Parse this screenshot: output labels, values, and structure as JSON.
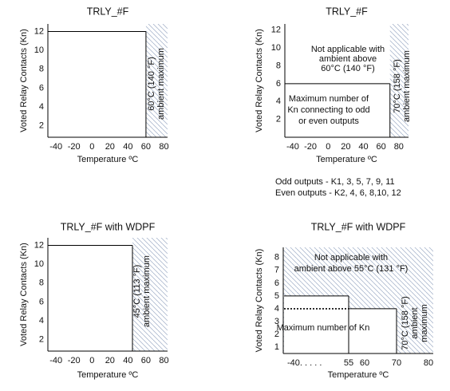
{
  "chart_data": [
    {
      "type": "step",
      "title": "TRLY_#F",
      "xlabel": "Temperature ºC",
      "ylabel": "Voted Relay Contacts (Kn)",
      "xlim": [
        -49,
        84
      ],
      "ylim": [
        0.8,
        12.8
      ],
      "xticks": [
        -40,
        -20,
        0,
        20,
        40,
        60,
        80
      ],
      "yticks": [
        2,
        4,
        6,
        8,
        10,
        12
      ],
      "series": [
        {
          "x": [
            -49,
            60
          ],
          "values": [
            12,
            12
          ],
          "dashed": false
        }
      ],
      "hatch_from": 60,
      "annotations": [
        [
          "60°C (140 °F)",
          "ambient maximum"
        ]
      ]
    },
    {
      "type": "step",
      "title": "TRLY_#F",
      "xlabel": "Temperature ºC",
      "ylabel": "Voted Relay Contacts (Kn)",
      "xlim": [
        -49,
        91
      ],
      "ylim": [
        0,
        12.7
      ],
      "xticks": [
        -40,
        -20,
        0,
        20,
        40,
        60,
        80
      ],
      "yticks": [
        2,
        4,
        6,
        8,
        10,
        12
      ],
      "series": [
        {
          "x": [
            -49,
            70
          ],
          "values": [
            6,
            6
          ],
          "dashed": false
        }
      ],
      "hatch_from": 70,
      "annotations": [
        [
          "Not applicable with",
          "ambient above",
          "60°C (140 °F)"
        ],
        [
          "Maximum number of",
          "Kn connecting to odd",
          "or even outputs"
        ],
        [
          "70°C (158 °F)",
          "ambient maximum"
        ]
      ],
      "notes": [
        "Odd outputs - K1, 3, 5, 7, 9, 11",
        "Even outputs - K2, 4, 6, 8,10, 12"
      ]
    },
    {
      "type": "step",
      "title": "TRLY_#F with WDPF",
      "xlabel": "Temperature ºC",
      "ylabel": "Voted Relay Contacts (Kn)",
      "xlim": [
        -49,
        84
      ],
      "ylim": [
        0.8,
        12.8
      ],
      "xticks": [
        -40,
        -20,
        0,
        20,
        40,
        60,
        80
      ],
      "yticks": [
        2,
        4,
        6,
        8,
        10,
        12
      ],
      "series": [
        {
          "x": [
            -49,
            45
          ],
          "values": [
            12,
            12
          ],
          "dashed": false
        }
      ],
      "hatch_from": 45,
      "annotations": [
        [
          "45°C (113 °F)",
          "ambient maximum"
        ]
      ]
    },
    {
      "type": "step",
      "title": "TRLY_#F with WDPF",
      "xlabel": "Temperature ºC",
      "ylabel": "Voted Relay Contacts (Kn)",
      "xlim": [
        -43,
        81.5
      ],
      "ylim": [
        0.5,
        8.8
      ],
      "x_axis_break": true,
      "xticks": [
        {
          "value": -40,
          "label": "-40. . . . ."
        },
        55,
        60,
        70,
        80
      ],
      "yticks": [
        1,
        2,
        3,
        4,
        5,
        6,
        7,
        8
      ],
      "series": [
        {
          "x": [
            -43,
            55
          ],
          "values": [
            5,
            5
          ],
          "dashed": false
        },
        {
          "x": [
            55,
            70
          ],
          "values": [
            4,
            4
          ],
          "dashed": false
        },
        {
          "x": [
            -43,
            55
          ],
          "values": [
            4,
            4
          ],
          "dashed": true
        }
      ],
      "hatch_from": "outside",
      "annotations": [
        [
          "Not applicable with",
          "ambient above 55°C (131 °F)"
        ],
        [
          "Maximum number of Kn"
        ],
        [
          "70°C (158 °F)",
          "ambient",
          "maximum"
        ]
      ]
    }
  ]
}
